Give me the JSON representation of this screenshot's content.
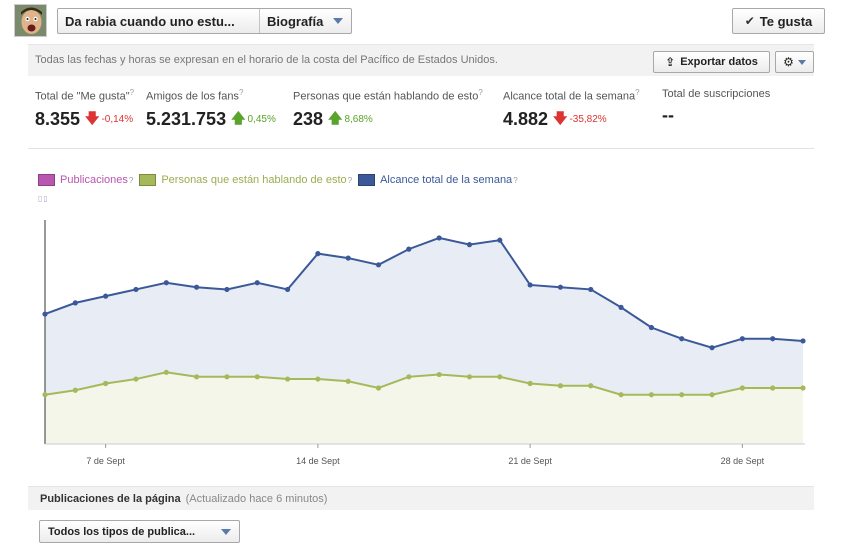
{
  "header": {
    "page_name": "Da rabia cuando uno estu...",
    "view_label": "Biografía",
    "like_label": "Te gusta"
  },
  "toolbar": {
    "timezone_note": "Todas las fechas y horas se expresan en el horario de la costa del Pacífico de Estados Unidos.",
    "export_label": "Exportar datos"
  },
  "stats": [
    {
      "label": "Total de \"Me gusta\"",
      "value": "8.355",
      "change": "-0,14%",
      "trend": "down"
    },
    {
      "label": "Amigos de los fans",
      "value": "5.231.753",
      "change": "0,45%",
      "trend": "up"
    },
    {
      "label": "Personas que están hablando de esto",
      "value": "238",
      "change": "8,68%",
      "trend": "up"
    },
    {
      "label": "Alcance total de la semana",
      "value": "4.882",
      "change": "-35,82%",
      "trend": "down"
    },
    {
      "label": "Total de suscripciones",
      "value": "--",
      "change": "",
      "trend": "none"
    }
  ],
  "legend": {
    "publicaciones": "Publicaciones",
    "hablando": "Personas que están hablando de esto",
    "alcance": "Alcance total de la semana",
    "help": "?"
  },
  "colors": {
    "publicaciones": "#b956b0",
    "hablando": "#a5b95a",
    "alcance": "#3b5998",
    "alcance_fill": "#e8ecf5",
    "hablando_fill": "#f4f6ea"
  },
  "chart_data": {
    "type": "line",
    "x_ticks": [
      "7 de Sept",
      "14 de Sept",
      "21 de Sept",
      "28 de Sept"
    ],
    "series": [
      {
        "name": "Alcance total de la semana",
        "values": [
          0.58,
          0.63,
          0.66,
          0.69,
          0.72,
          0.7,
          0.69,
          0.72,
          0.69,
          0.85,
          0.83,
          0.8,
          0.87,
          0.92,
          0.89,
          0.91,
          0.71,
          0.7,
          0.69,
          0.61,
          0.52,
          0.47,
          0.43,
          0.47,
          0.47,
          0.46
        ]
      },
      {
        "name": "Personas que están hablando de esto",
        "values": [
          0.22,
          0.24,
          0.27,
          0.29,
          0.32,
          0.3,
          0.3,
          0.3,
          0.29,
          0.29,
          0.28,
          0.25,
          0.3,
          0.31,
          0.3,
          0.3,
          0.27,
          0.26,
          0.26,
          0.22,
          0.22,
          0.22,
          0.22,
          0.25,
          0.25,
          0.25
        ]
      }
    ]
  },
  "posts": {
    "title": "Publicaciones de la página",
    "updated": "(Actualizado hace 6 minutos)",
    "filter_label": "Todos los tipos de publica..."
  }
}
